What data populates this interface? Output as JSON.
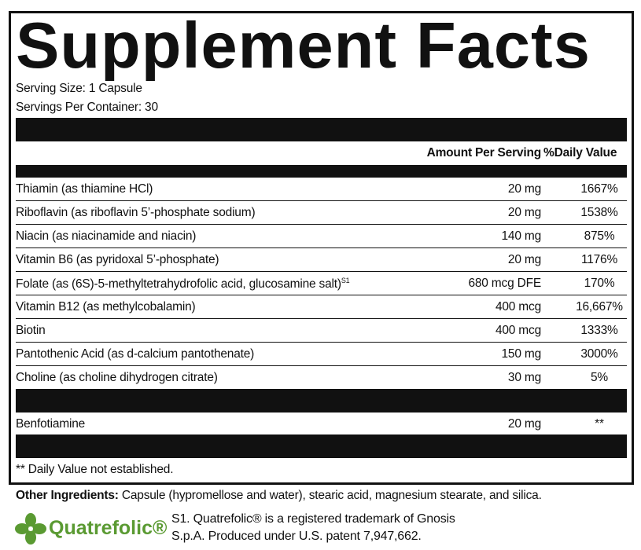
{
  "title": "Supplement Facts",
  "serving_size": "Serving Size: 1 Capsule",
  "servings_per_container": "Servings Per Container: 30",
  "header": {
    "amount": "Amount Per Serving",
    "dv": "%Daily Value"
  },
  "rows": [
    {
      "name": "Thiamin (as thiamine HCl)",
      "amount": "20 mg",
      "dv": "1667%"
    },
    {
      "name": "Riboflavin (as riboflavin 5’-phosphate sodium)",
      "amount": "20 mg",
      "dv": "1538%"
    },
    {
      "name": "Niacin (as niacinamide and niacin)",
      "amount": "140 mg",
      "dv": "875%"
    },
    {
      "name": "Vitamin B6 (as pyridoxal 5’-phosphate)",
      "amount": "20 mg",
      "dv": "1176%"
    },
    {
      "name": "Folate (as (6S)-5-methyltetrahydrofolic acid, glucosamine salt)",
      "note": "S1",
      "amount": "680 mcg DFE",
      "dv": "170%"
    },
    {
      "name": "Vitamin B12 (as methylcobalamin)",
      "amount": "400 mcg",
      "dv": "16,667%"
    },
    {
      "name": "Biotin",
      "amount": "400 mcg",
      "dv": "1333%"
    },
    {
      "name": "Pantothenic Acid (as d-calcium pantothenate)",
      "amount": "150 mg",
      "dv": "3000%"
    },
    {
      "name": "Choline (as choline dihydrogen citrate)",
      "amount": "30 mg",
      "dv": "5%"
    }
  ],
  "rows2": [
    {
      "name": "Benfotiamine",
      "amount": "20 mg",
      "dv": "**"
    }
  ],
  "footnote": "** Daily Value not established.",
  "other_ingredients": {
    "label": "Other Ingredients:",
    "text": "Capsule (hypromellose and water), stearic acid, magnesium stearate, and silica."
  },
  "logo": "Quatrefolic®",
  "trademark": [
    "S1. Quatrefolic® is a registered trademark of Gnosis",
    "S.p.A. Produced under U.S. patent 7,947,662."
  ]
}
